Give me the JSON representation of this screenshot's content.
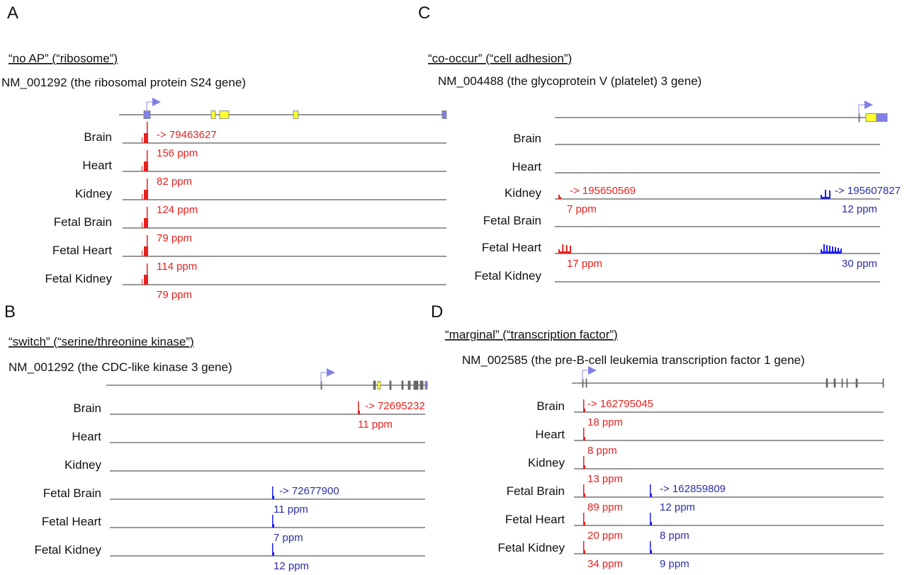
{
  "colors": {
    "red": "#e8211f",
    "blue_text": "#2b2fa6",
    "blue_peak": "#1f1ff0",
    "exon_yellow": "#ffff33",
    "exon_blue": "#8080e6",
    "exon_gray": "#666666",
    "line": "#777777",
    "arrow": "#8080e6"
  },
  "panels": [
    {
      "letter": "A",
      "title": "“no AP” (“ribosome”)",
      "gene": "NM_001292 (the ribosomal protein S24 gene)",
      "tracks": [
        {
          "label": "Brain",
          "reads": [
            {
              "color": "red",
              "coord": "-> 79463627",
              "ppm": "156 ppm"
            }
          ]
        },
        {
          "label": "Heart",
          "reads": [
            {
              "color": "red",
              "ppm": "82 ppm"
            }
          ]
        },
        {
          "label": "Kidney",
          "reads": [
            {
              "color": "red",
              "ppm": "124 ppm"
            }
          ]
        },
        {
          "label": "Fetal Brain",
          "reads": [
            {
              "color": "red",
              "ppm": "79 ppm"
            }
          ]
        },
        {
          "label": "Fetal Heart",
          "reads": [
            {
              "color": "red",
              "ppm": "114 ppm"
            }
          ]
        },
        {
          "label": "Fetal Kidney",
          "reads": [
            {
              "color": "red",
              "ppm": "79 ppm"
            }
          ]
        }
      ]
    },
    {
      "letter": "B",
      "title": "“switch” (“serine/threonine kinase”)",
      "gene": "NM_001292 (the CDC-like kinase 3 gene)",
      "tracks": [
        {
          "label": "Brain",
          "reads": [
            {
              "color": "red",
              "coord": "-> 72695232",
              "ppm": "11 ppm"
            }
          ]
        },
        {
          "label": "Heart",
          "reads": []
        },
        {
          "label": "Kidney",
          "reads": []
        },
        {
          "label": "Fetal Brain",
          "reads": [
            {
              "color": "blue",
              "coord": "-> 72677900",
              "ppm": "11 ppm"
            }
          ]
        },
        {
          "label": "Fetal Heart",
          "reads": [
            {
              "color": "blue",
              "ppm": "7 ppm"
            }
          ]
        },
        {
          "label": "Fetal Kidney",
          "reads": [
            {
              "color": "blue",
              "ppm": "12 ppm"
            }
          ]
        }
      ]
    },
    {
      "letter": "C",
      "title": "“co-occur” (“cell adhesion”)",
      "gene": "NM_004488 (the glycoprotein V (platelet) 3 gene)",
      "tracks": [
        {
          "label": "Brain",
          "reads": []
        },
        {
          "label": "Heart",
          "reads": []
        },
        {
          "label": "Kidney",
          "reads": [
            {
              "color": "red",
              "coord": "-> 195650569",
              "ppm": "7 ppm"
            },
            {
              "color": "blue",
              "coord": "-> 195607827",
              "ppm": "12 ppm"
            }
          ]
        },
        {
          "label": "Fetal Brain",
          "reads": []
        },
        {
          "label": "Fetal Heart",
          "reads": [
            {
              "color": "red",
              "ppm": "17 ppm"
            },
            {
              "color": "blue",
              "ppm": "30 ppm"
            }
          ]
        },
        {
          "label": "Fetal Kidney",
          "reads": []
        }
      ]
    },
    {
      "letter": "D",
      "title": "“marginal” (“transcription factor”)",
      "gene": "NM_002585 (the pre-B-cell leukemia transcription factor 1 gene)",
      "tracks": [
        {
          "label": "Brain",
          "reads": [
            {
              "color": "red",
              "coord": "-> 162795045",
              "ppm": "18 ppm"
            }
          ]
        },
        {
          "label": "Heart",
          "reads": [
            {
              "color": "red",
              "ppm": "8 ppm"
            }
          ]
        },
        {
          "label": "Kidney",
          "reads": [
            {
              "color": "red",
              "ppm": "13 ppm"
            }
          ]
        },
        {
          "label": "Fetal Brain",
          "reads": [
            {
              "color": "red",
              "ppm": "89 ppm"
            },
            {
              "color": "blue",
              "coord": "-> 162859809",
              "ppm": "12 ppm"
            }
          ]
        },
        {
          "label": "Fetal Heart",
          "reads": [
            {
              "color": "red",
              "ppm": "20 ppm"
            },
            {
              "color": "blue",
              "ppm": "8 ppm"
            }
          ]
        },
        {
          "label": "Fetal Kidney",
          "reads": [
            {
              "color": "red",
              "ppm": "34 ppm"
            },
            {
              "color": "blue",
              "ppm": "9 ppm"
            }
          ]
        }
      ]
    }
  ]
}
